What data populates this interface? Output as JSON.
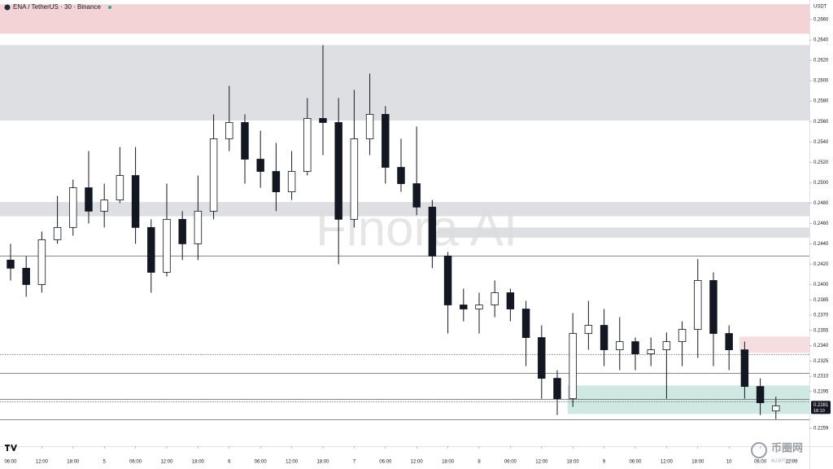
{
  "chart_data": {
    "type": "candlestick",
    "title": "ENA / TetherUS · 30 · Binance",
    "y_axis_label": "USDT",
    "watermark": "Finora AI",
    "x": [
      0,
      3,
      6,
      9,
      12,
      15,
      18,
      21,
      24,
      27,
      30,
      33,
      36,
      39,
      42,
      45,
      48,
      51,
      54,
      57,
      60,
      63,
      66,
      69,
      72,
      75,
      78,
      81,
      84,
      87,
      90,
      93,
      96,
      99,
      102,
      105,
      108,
      111,
      114,
      117,
      120,
      123,
      126,
      129,
      132,
      135,
      138,
      141,
      144,
      147
    ],
    "open": [
      0.2424,
      0.2416,
      0.24,
      0.2444,
      0.2456,
      0.2495,
      0.2472,
      0.2483,
      0.2507,
      0.2456,
      0.2412,
      0.2464,
      0.244,
      0.2472,
      0.2543,
      0.2559,
      0.2523,
      0.2511,
      0.2491,
      0.2511,
      0.2563,
      0.2559,
      0.2464,
      0.2543,
      0.2567,
      0.2515,
      0.2499,
      0.2476,
      0.2428,
      0.238,
      0.2376,
      0.238,
      0.2392,
      0.2376,
      0.2348,
      0.2308,
      0.2288,
      0.2352,
      0.236,
      0.2336,
      0.2344,
      0.2332,
      0.2336,
      0.2344,
      0.2356,
      0.2404,
      0.2352,
      0.2336,
      0.23,
      0.2276
    ],
    "high": [
      0.244,
      0.2428,
      0.2452,
      0.2487,
      0.2503,
      0.2531,
      0.2499,
      0.2535,
      0.2535,
      0.2464,
      0.2499,
      0.2472,
      0.2507,
      0.2567,
      0.2595,
      0.2567,
      0.2551,
      0.2539,
      0.2531,
      0.2583,
      0.2635,
      0.2583,
      0.2591,
      0.2607,
      0.2575,
      0.2543,
      0.2555,
      0.2483,
      0.2432,
      0.2396,
      0.2392,
      0.2404,
      0.2396,
      0.2384,
      0.236,
      0.2316,
      0.2372,
      0.2384,
      0.2376,
      0.2368,
      0.2348,
      0.2348,
      0.2353,
      0.2364,
      0.2425,
      0.2412,
      0.236,
      0.2344,
      0.2308,
      0.229
    ],
    "low": [
      0.2404,
      0.2388,
      0.2392,
      0.244,
      0.2448,
      0.246,
      0.2456,
      0.248,
      0.244,
      0.2392,
      0.2408,
      0.2424,
      0.2424,
      0.2464,
      0.2531,
      0.2499,
      0.2495,
      0.2472,
      0.2483,
      0.2507,
      0.2527,
      0.242,
      0.2456,
      0.2527,
      0.2499,
      0.2491,
      0.2468,
      0.2416,
      0.2352,
      0.2364,
      0.2352,
      0.2368,
      0.2364,
      0.232,
      0.2288,
      0.2272,
      0.228,
      0.2336,
      0.232,
      0.2316,
      0.2316,
      0.232,
      0.2288,
      0.232,
      0.2328,
      0.232,
      0.2316,
      0.2288,
      0.2272,
      0.2268
    ],
    "close": [
      0.2416,
      0.24,
      0.2444,
      0.2456,
      0.2495,
      0.2472,
      0.2483,
      0.2507,
      0.2456,
      0.2412,
      0.2464,
      0.244,
      0.2472,
      0.2543,
      0.2559,
      0.2523,
      0.2511,
      0.2491,
      0.2511,
      0.2563,
      0.2559,
      0.2464,
      0.2543,
      0.2567,
      0.2515,
      0.2499,
      0.2476,
      0.2428,
      0.238,
      0.2376,
      0.238,
      0.2392,
      0.2376,
      0.2348,
      0.2308,
      0.2288,
      0.2352,
      0.236,
      0.2336,
      0.2344,
      0.2332,
      0.2336,
      0.2344,
      0.2356,
      0.2404,
      0.2352,
      0.2336,
      0.23,
      0.2284,
      0.2281
    ],
    "colors": {
      "up": "#ffffff",
      "down": "#131722",
      "wick": "#131722"
    },
    "xlim": [
      -2.03,
      153.44
    ],
    "xticks": [
      {
        "value": 0,
        "label": "06:00"
      },
      {
        "value": 6,
        "label": "12:00"
      },
      {
        "value": 12,
        "label": "18:00"
      },
      {
        "value": 18,
        "label": "5"
      },
      {
        "value": 24,
        "label": "06:00"
      },
      {
        "value": 30,
        "label": "12:00"
      },
      {
        "value": 36,
        "label": "18:00"
      },
      {
        "value": 42,
        "label": "6"
      },
      {
        "value": 48,
        "label": "06:00"
      },
      {
        "value": 54,
        "label": "12:00"
      },
      {
        "value": 60,
        "label": "18:00"
      },
      {
        "value": 66,
        "label": "7"
      },
      {
        "value": 72,
        "label": "06:00"
      },
      {
        "value": 78,
        "label": "12:00"
      },
      {
        "value": 84,
        "label": "18:00"
      },
      {
        "value": 90,
        "label": "8"
      },
      {
        "value": 96,
        "label": "06:00"
      },
      {
        "value": 102,
        "label": "12:00"
      },
      {
        "value": 108,
        "label": "18:00"
      },
      {
        "value": 114,
        "label": "9"
      },
      {
        "value": 120,
        "label": "06:00"
      },
      {
        "value": 126,
        "label": "12:00"
      },
      {
        "value": 132,
        "label": "18:00"
      },
      {
        "value": 138,
        "label": "10"
      },
      {
        "value": 144,
        "label": "06:00"
      },
      {
        "value": 150,
        "label": "12:00"
      }
    ],
    "ylim": [
      0.22414,
      0.26792
    ],
    "yticks": [
      {
        "value": 0.266,
        "label": "0.2660"
      },
      {
        "value": 0.264,
        "label": "0.2640"
      },
      {
        "value": 0.262,
        "label": "0.2620"
      },
      {
        "value": 0.26,
        "label": "0.2600"
      },
      {
        "value": 0.258,
        "label": "0.2580"
      },
      {
        "value": 0.256,
        "label": "0.2560"
      },
      {
        "value": 0.254,
        "label": "0.2540"
      },
      {
        "value": 0.252,
        "label": "0.2520"
      },
      {
        "value": 0.25,
        "label": "0.2500"
      },
      {
        "value": 0.248,
        "label": "0.2480"
      },
      {
        "value": 0.246,
        "label": "0.2460"
      },
      {
        "value": 0.244,
        "label": "0.2440"
      },
      {
        "value": 0.242,
        "label": "0.2420"
      },
      {
        "value": 0.24,
        "label": "0.2400"
      },
      {
        "value": 0.2385,
        "label": "0.2385"
      },
      {
        "value": 0.237,
        "label": "0.2370"
      },
      {
        "value": 0.2355,
        "label": "0.2355"
      },
      {
        "value": 0.234,
        "label": "0.2340"
      },
      {
        "value": 0.2325,
        "label": "0.2325"
      },
      {
        "value": 0.231,
        "label": "0.2310"
      },
      {
        "value": 0.2295,
        "label": "0.2295"
      },
      {
        "value": 0.2259,
        "label": "0.2259"
      }
    ],
    "zones": [
      {
        "from": 0.2675,
        "to": 0.2646,
        "color": "#f3d3d6"
      },
      {
        "from": 0.2635,
        "to": 0.2561,
        "color": "#dedfe2"
      },
      {
        "from": 0.2481,
        "to": 0.2467,
        "color": "#dedfe2"
      },
      {
        "from": 0.2456,
        "to": 0.2446,
        "start": 82,
        "color": "#dedfe2"
      },
      {
        "from": 0.2349,
        "to": 0.2333,
        "start": 140,
        "color": "#f6dde0"
      },
      {
        "from": 0.2301,
        "to": 0.2273,
        "start": 107,
        "color": "#cfe8e2"
      }
    ],
    "levels": [
      {
        "value": 0.2428,
        "style": "solid"
      },
      {
        "value": 0.2332,
        "style": "dotted"
      },
      {
        "value": 0.2313,
        "style": "solid"
      },
      {
        "value": 0.2288,
        "style": "solid"
      },
      {
        "value": 0.2285,
        "style": "dotted"
      },
      {
        "value": 0.2268,
        "style": "solid"
      }
    ],
    "price_tag": {
      "value": 0.2281,
      "label": "0.2281",
      "countdown": "18:10"
    }
  },
  "logo": {
    "text": "币圈网",
    "site": "ALLBTC.COM"
  }
}
